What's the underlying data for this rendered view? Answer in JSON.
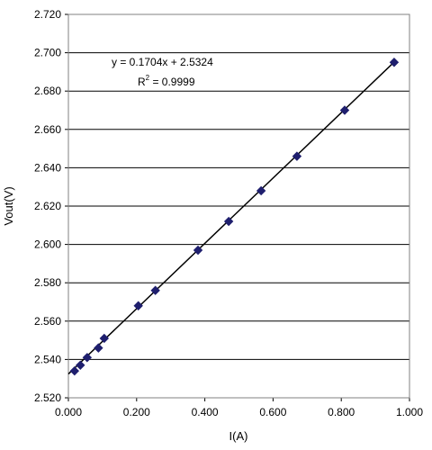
{
  "chart_data": {
    "type": "scatter",
    "xlabel": "I(A)",
    "ylabel": "Vout(V)",
    "xlim": [
      0.0,
      1.0
    ],
    "ylim": [
      2.52,
      2.72
    ],
    "x_ticks": [
      "0.000",
      "0.200",
      "0.400",
      "0.600",
      "0.800",
      "1.000"
    ],
    "y_ticks": [
      "2.520",
      "2.540",
      "2.560",
      "2.580",
      "2.600",
      "2.620",
      "2.640",
      "2.660",
      "2.680",
      "2.700",
      "2.720"
    ],
    "grid": "horizontal",
    "series": [
      {
        "marker": "diamond",
        "color": "#1f1f6e",
        "points": [
          {
            "x": 0.018,
            "y": 2.534
          },
          {
            "x": 0.035,
            "y": 2.537
          },
          {
            "x": 0.055,
            "y": 2.541
          },
          {
            "x": 0.088,
            "y": 2.546
          },
          {
            "x": 0.105,
            "y": 2.551
          },
          {
            "x": 0.205,
            "y": 2.568
          },
          {
            "x": 0.255,
            "y": 2.576
          },
          {
            "x": 0.38,
            "y": 2.597
          },
          {
            "x": 0.47,
            "y": 2.612
          },
          {
            "x": 0.565,
            "y": 2.628
          },
          {
            "x": 0.67,
            "y": 2.646
          },
          {
            "x": 0.81,
            "y": 2.67
          },
          {
            "x": 0.955,
            "y": 2.695
          }
        ]
      }
    ],
    "trendline": {
      "slope": 0.1704,
      "intercept": 2.5324,
      "x_range": [
        0.0,
        0.955
      ],
      "color": "#000000"
    },
    "annotations": {
      "equation": "y = 0.1704x + 2.5324",
      "r2_prefix": "R",
      "r2_sup": "2",
      "r2_value": " = 0.9999"
    }
  }
}
